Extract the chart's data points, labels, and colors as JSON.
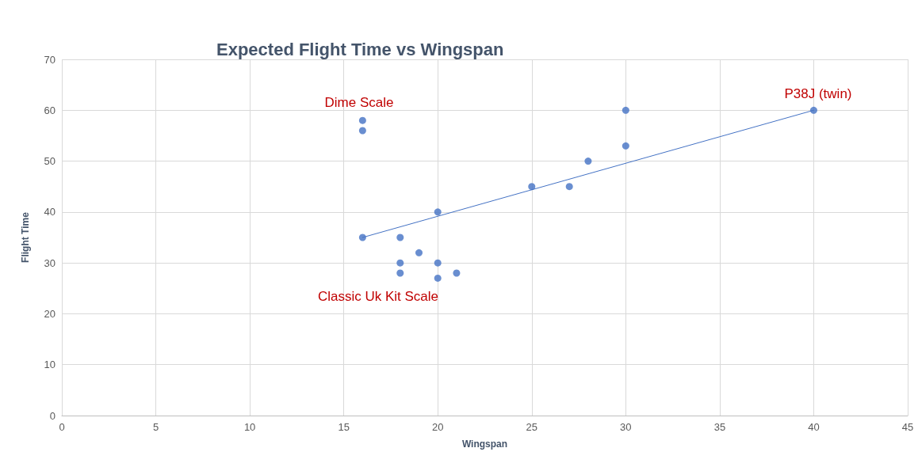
{
  "chart_data": {
    "type": "scatter",
    "title": "Expected Flight Time vs Wingspan",
    "xlabel": "Wingspan",
    "ylabel": "Flight Time",
    "series": [
      {
        "color": "#4472c4",
        "marker": "circle",
        "x": [
          16,
          16,
          16,
          18,
          18,
          18,
          19,
          20,
          20,
          20,
          21,
          25,
          27,
          28,
          30,
          30,
          40
        ],
        "values": [
          58,
          56,
          35,
          35,
          30,
          28,
          32,
          40,
          30,
          27,
          28,
          45,
          45,
          50,
          60,
          53,
          60
        ]
      },
      {
        "type": "line",
        "color": "#4472c4",
        "marker": "none",
        "line_style": "solid",
        "x": [
          16,
          40
        ],
        "values": [
          35,
          60
        ]
      }
    ],
    "annotations": [
      "Dime Scale",
      "Classic Uk Kit Scale",
      "P38J (twin)"
    ],
    "xlim": [
      0,
      45
    ],
    "xticks": [
      0,
      5,
      10,
      15,
      20,
      25,
      30,
      35,
      40,
      45
    ],
    "ylim": [
      0,
      70
    ],
    "yticks": [
      0,
      10,
      20,
      30,
      40,
      50,
      60,
      70
    ],
    "grid": true
  }
}
